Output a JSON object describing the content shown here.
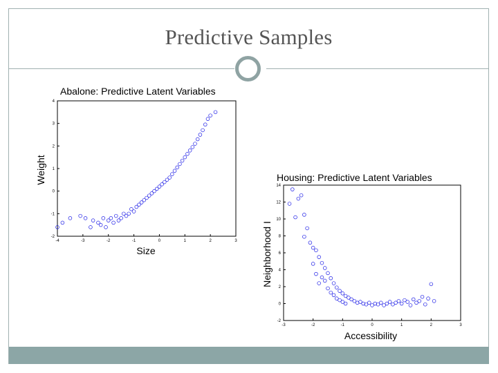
{
  "slide": {
    "title": "Predictive Samples",
    "accent_color": "#8ca6a6"
  },
  "chart_data": [
    {
      "type": "scatter",
      "title": "Abalone: Predictive Latent Variables",
      "xlabel": "Size",
      "ylabel": "Weight",
      "xlim": [
        -4,
        3
      ],
      "ylim": [
        -2,
        4
      ],
      "xticks": [
        -4,
        -3,
        -2,
        -1,
        0,
        1,
        2,
        3
      ],
      "yticks": [
        -2,
        -1,
        0,
        1,
        2,
        3,
        4
      ],
      "marker_color": "#1a1ae6",
      "grid": false,
      "points": [
        [
          -4.0,
          -1.6
        ],
        [
          -3.8,
          -1.4
        ],
        [
          -3.5,
          -1.2
        ],
        [
          -3.1,
          -1.1
        ],
        [
          -2.9,
          -1.2
        ],
        [
          -2.7,
          -1.6
        ],
        [
          -2.6,
          -1.3
        ],
        [
          -2.4,
          -1.4
        ],
        [
          -2.3,
          -1.5
        ],
        [
          -2.2,
          -1.2
        ],
        [
          -2.1,
          -1.6
        ],
        [
          -2.0,
          -1.3
        ],
        [
          -1.9,
          -1.2
        ],
        [
          -1.8,
          -1.4
        ],
        [
          -1.7,
          -1.1
        ],
        [
          -1.6,
          -1.3
        ],
        [
          -1.5,
          -1.2
        ],
        [
          -1.4,
          -1.0
        ],
        [
          -1.3,
          -1.1
        ],
        [
          -1.2,
          -1.0
        ],
        [
          -1.1,
          -0.8
        ],
        [
          -1.0,
          -0.9
        ],
        [
          -0.9,
          -0.7
        ],
        [
          -0.8,
          -0.6
        ],
        [
          -0.7,
          -0.5
        ],
        [
          -0.6,
          -0.4
        ],
        [
          -0.5,
          -0.3
        ],
        [
          -0.4,
          -0.2
        ],
        [
          -0.3,
          -0.1
        ],
        [
          -0.2,
          0.0
        ],
        [
          -0.1,
          0.1
        ],
        [
          0.0,
          0.2
        ],
        [
          0.1,
          0.3
        ],
        [
          0.2,
          0.4
        ],
        [
          0.3,
          0.5
        ],
        [
          0.4,
          0.6
        ],
        [
          0.5,
          0.75
        ],
        [
          0.6,
          0.9
        ],
        [
          0.7,
          1.05
        ],
        [
          0.8,
          1.2
        ],
        [
          0.9,
          1.35
        ],
        [
          1.0,
          1.5
        ],
        [
          1.1,
          1.65
        ],
        [
          1.2,
          1.8
        ],
        [
          1.3,
          1.95
        ],
        [
          1.4,
          2.1
        ],
        [
          1.5,
          2.3
        ],
        [
          1.6,
          2.5
        ],
        [
          1.7,
          2.7
        ],
        [
          1.8,
          2.95
        ],
        [
          1.9,
          3.2
        ],
        [
          2.0,
          3.35
        ],
        [
          2.2,
          3.5
        ]
      ]
    },
    {
      "type": "scatter",
      "title": "Housing: Predictive Latent Variables",
      "xlabel": "Accessibility",
      "ylabel": "Neighborhood I",
      "xlim": [
        -3,
        3
      ],
      "ylim": [
        -2,
        14
      ],
      "xticks": [
        -3,
        -2,
        -1,
        0,
        1,
        2,
        3
      ],
      "yticks": [
        -2,
        0,
        2,
        4,
        6,
        8,
        10,
        12,
        14
      ],
      "marker_color": "#1a1ae6",
      "grid": false,
      "points": [
        [
          -2.8,
          11.8
        ],
        [
          -2.7,
          13.5
        ],
        [
          -2.6,
          10.2
        ],
        [
          -2.5,
          12.4
        ],
        [
          -2.4,
          12.8
        ],
        [
          -2.3,
          10.5
        ],
        [
          -2.3,
          7.9
        ],
        [
          -2.2,
          8.9
        ],
        [
          -2.1,
          7.2
        ],
        [
          -2.0,
          6.6
        ],
        [
          -2.0,
          4.7
        ],
        [
          -1.9,
          6.3
        ],
        [
          -1.9,
          3.5
        ],
        [
          -1.8,
          5.5
        ],
        [
          -1.8,
          2.4
        ],
        [
          -1.7,
          4.8
        ],
        [
          -1.7,
          3.1
        ],
        [
          -1.6,
          4.2
        ],
        [
          -1.6,
          2.7
        ],
        [
          -1.5,
          3.6
        ],
        [
          -1.5,
          1.8
        ],
        [
          -1.4,
          3.0
        ],
        [
          -1.4,
          1.3
        ],
        [
          -1.3,
          2.4
        ],
        [
          -1.3,
          1.0
        ],
        [
          -1.2,
          1.9
        ],
        [
          -1.2,
          0.6
        ],
        [
          -1.1,
          1.5
        ],
        [
          -1.1,
          0.4
        ],
        [
          -1.0,
          1.2
        ],
        [
          -1.0,
          0.2
        ],
        [
          -0.9,
          0.9
        ],
        [
          -0.9,
          0.0
        ],
        [
          -0.8,
          0.7
        ],
        [
          -0.7,
          0.5
        ],
        [
          -0.6,
          0.3
        ],
        [
          -0.5,
          0.1
        ],
        [
          -0.4,
          0.2
        ],
        [
          -0.3,
          0.0
        ],
        [
          -0.2,
          -0.1
        ],
        [
          -0.1,
          0.1
        ],
        [
          0.0,
          -0.2
        ],
        [
          0.1,
          0.0
        ],
        [
          0.2,
          -0.1
        ],
        [
          0.3,
          0.1
        ],
        [
          0.4,
          -0.2
        ],
        [
          0.5,
          0.0
        ],
        [
          0.6,
          0.2
        ],
        [
          0.7,
          -0.1
        ],
        [
          0.8,
          0.1
        ],
        [
          0.9,
          0.3
        ],
        [
          1.0,
          0.0
        ],
        [
          1.1,
          0.4
        ],
        [
          1.2,
          0.2
        ],
        [
          1.3,
          -0.2
        ],
        [
          1.4,
          0.5
        ],
        [
          1.5,
          0.1
        ],
        [
          1.6,
          0.3
        ],
        [
          1.7,
          0.8
        ],
        [
          1.8,
          -0.1
        ],
        [
          1.9,
          0.6
        ],
        [
          2.0,
          2.3
        ],
        [
          2.1,
          0.3
        ]
      ]
    }
  ]
}
